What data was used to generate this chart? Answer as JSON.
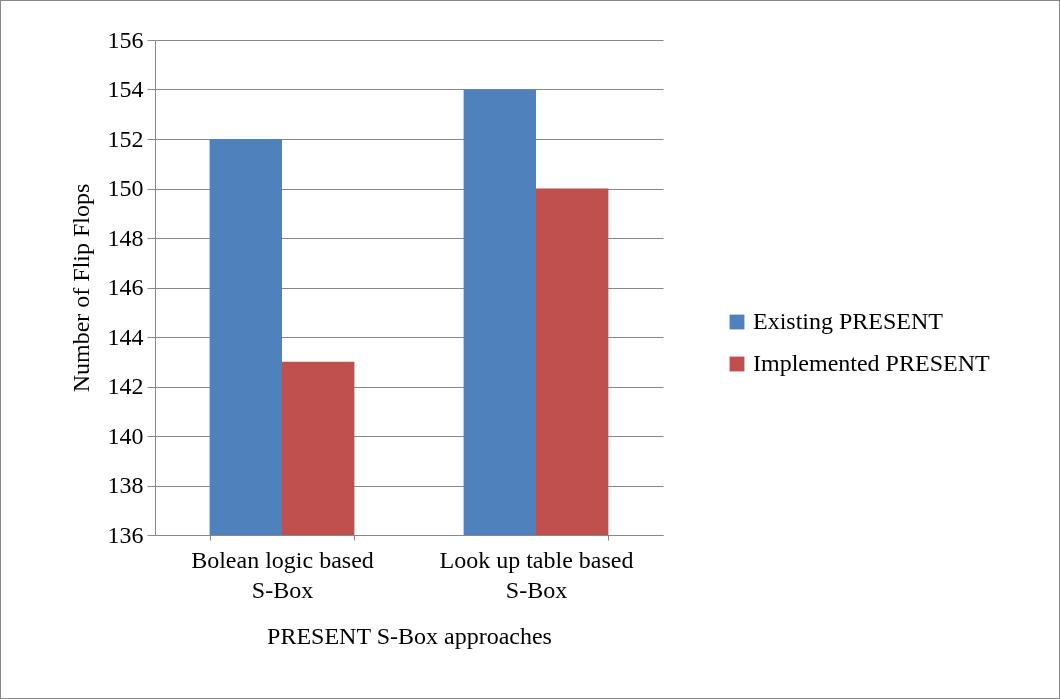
{
  "chart_data": {
    "type": "bar",
    "xlabel": "PRESENT S-Box approaches",
    "ylabel": "Number of  Flip Flops",
    "categories": [
      "Bolean logic based S-Box",
      "Look up table based S-Box"
    ],
    "series": [
      {
        "name": "Existing PRESENT",
        "color": "#4f81bd",
        "values": [
          152,
          154
        ]
      },
      {
        "name": "Implemented PRESENT",
        "color": "#c0504d",
        "values": [
          143,
          150
        ]
      }
    ],
    "ylim": [
      136,
      156
    ],
    "yticks": [
      136,
      138,
      140,
      142,
      144,
      146,
      148,
      150,
      152,
      154,
      156
    ],
    "grid": "y",
    "legend": "right"
  }
}
